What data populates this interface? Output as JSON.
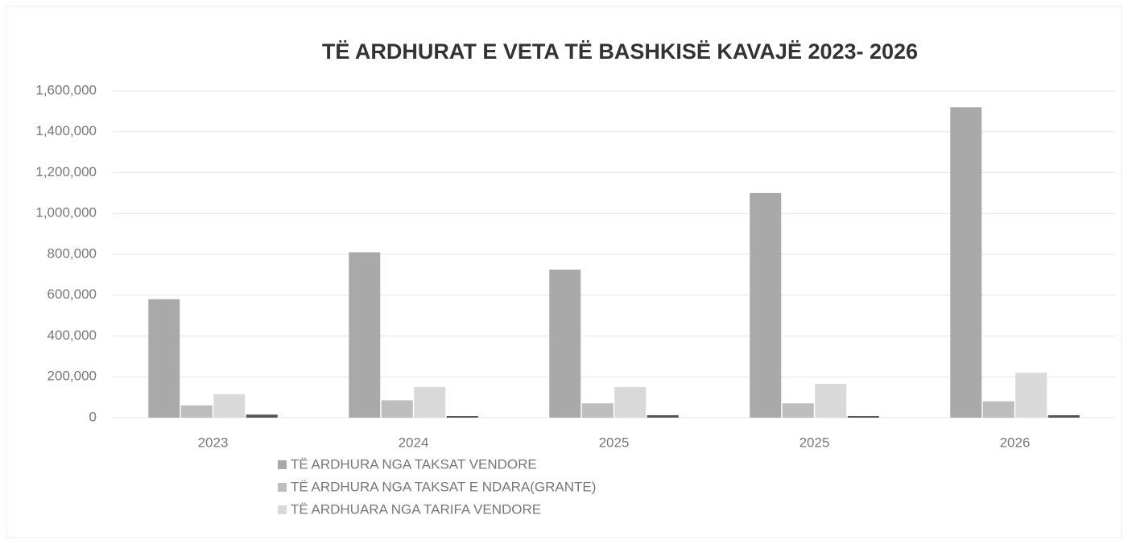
{
  "chart_data": {
    "type": "bar",
    "title": "TË  ARDHURAT E VETA TË  BASHKISË  KAVAJË 2023- 2026",
    "categories": [
      "2023",
      "2024",
      "2025",
      "2025",
      "2026"
    ],
    "series": [
      {
        "name": "TË  ARDHURA NGA TAKSAT  VENDORE",
        "color": "#a9a9a9",
        "values": [
          580000,
          810000,
          725000,
          1100000,
          1520000
        ]
      },
      {
        "name": "TË ARDHURA NGA TAKSAT E NDARA(GRANTE)",
        "color": "#bdbdbd",
        "values": [
          60000,
          85000,
          70000,
          70000,
          80000
        ]
      },
      {
        "name": "TË ARDHUARA NGA TARIFA VENDORE",
        "color": "#d9d9d9",
        "values": [
          115000,
          150000,
          150000,
          165000,
          220000
        ]
      },
      {
        "name": null,
        "color": "#555555",
        "values": [
          15000,
          8000,
          12000,
          8000,
          12000
        ]
      }
    ],
    "ylim": [
      0,
      1600000
    ],
    "yticks": [
      0,
      {
        "value": 200000,
        "label": "200,000"
      },
      {
        "value": 400000,
        "label": "400,000"
      },
      {
        "value": 600000,
        "label": "600,000"
      },
      {
        "value": 800000,
        "label": "800,000"
      },
      {
        "value": 1000000,
        "label": "1,000,000"
      },
      {
        "value": 1200000,
        "label": "1,200,000"
      },
      {
        "value": 1400000,
        "label": "1,400,000"
      },
      {
        "value": 1600000,
        "label": "1,600,000"
      }
    ],
    "grid": true,
    "legend": "bottom"
  }
}
